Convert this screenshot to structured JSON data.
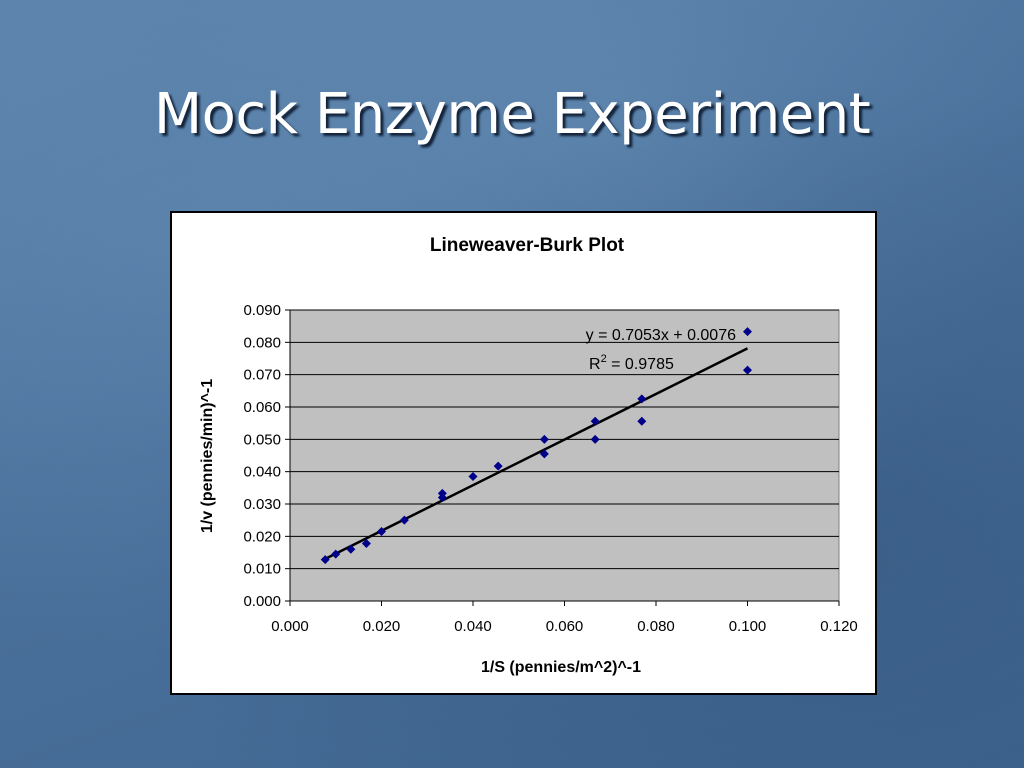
{
  "slide": {
    "title": "Mock Enzyme Experiment"
  },
  "chart_data": {
    "type": "scatter",
    "title": "Lineweaver-Burk Plot",
    "xlabel": "1/S (pennies/m^2)^-1",
    "ylabel": "1/v (pennies/min)^-1",
    "xlim": [
      0,
      0.12
    ],
    "ylim": [
      0,
      0.09
    ],
    "x_ticks": [
      "0.000",
      "0.020",
      "0.040",
      "0.060",
      "0.080",
      "0.100",
      "0.120"
    ],
    "y_ticks": [
      "0.000",
      "0.010",
      "0.020",
      "0.030",
      "0.040",
      "0.050",
      "0.060",
      "0.070",
      "0.080",
      "0.090"
    ],
    "grid": true,
    "series": [
      {
        "x": [
          0.0077,
          0.01,
          0.0133,
          0.0167,
          0.02,
          0.025,
          0.0333,
          0.0333,
          0.04,
          0.0455,
          0.0556,
          0.0556,
          0.0667,
          0.0667,
          0.0769,
          0.0769,
          0.1,
          0.1
        ],
        "y": [
          0.0128,
          0.0145,
          0.016,
          0.0178,
          0.0215,
          0.025,
          0.032,
          0.0333,
          0.0385,
          0.0417,
          0.0455,
          0.05,
          0.05,
          0.0556,
          0.0556,
          0.0625,
          0.0714,
          0.0833
        ],
        "color": "#00008b"
      }
    ],
    "trendline": {
      "slope": 0.7053,
      "intercept": 0.0076,
      "x_range": [
        0.0077,
        0.1
      ],
      "color": "#000000"
    },
    "annotations": {
      "equation": "y = 0.7053x + 0.0076",
      "r2_base": "R",
      "r2_sup": "2",
      "r2_rest": " = 0.9785"
    },
    "plot_background": "#c0c0c0"
  }
}
